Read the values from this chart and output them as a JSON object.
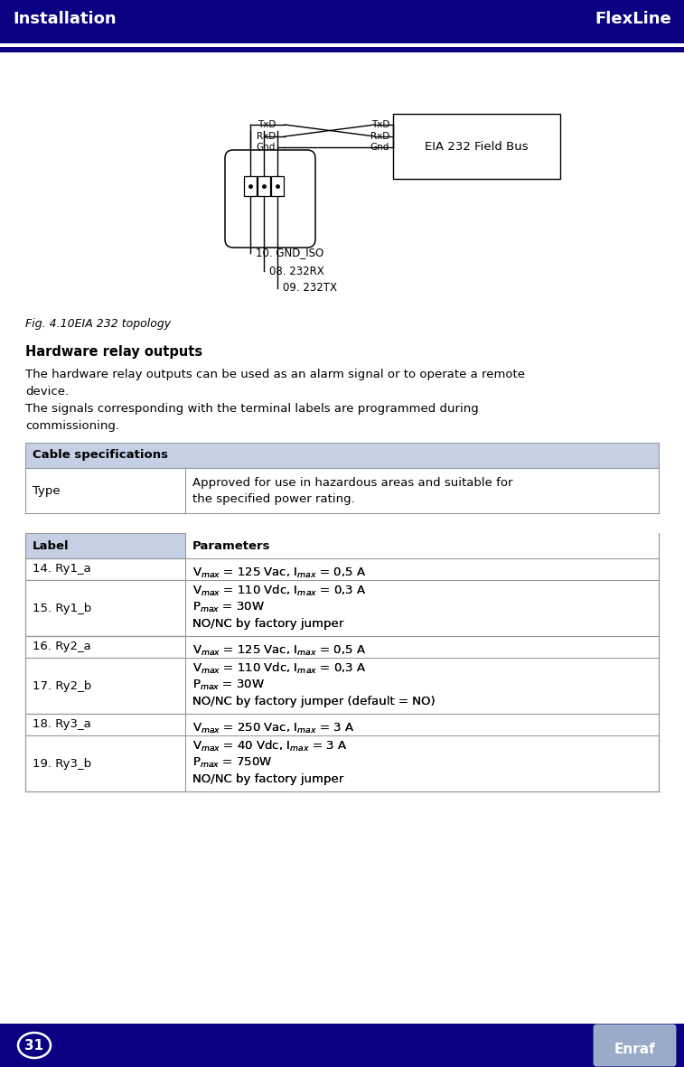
{
  "header_bg": "#0b0082",
  "header_text_color": "#ffffff",
  "header_left": "Installation",
  "header_right": "FlexLine",
  "footer_bg": "#0b0082",
  "footer_text_color": "#ffffff",
  "page_number": "31",
  "bg_color": "#ffffff",
  "fig_caption": "Fig. 4.10EIA 232 topology",
  "section_title": "Hardware relay outputs",
  "body_line1": "The hardware relay outputs can be used as an alarm signal or to operate a remote",
  "body_line2": "device.",
  "body_line3": "The signals corresponding with the terminal labels are programmed during",
  "body_line4": "commissioning.",
  "cable_spec_header": "Cable specifications",
  "cable_spec_col1": "Type",
  "cable_spec_col2a": "Approved for use in hazardous areas and suitable for",
  "cable_spec_col2b": "the specified power rating.",
  "table_header_bg": "#c5d0e4",
  "table_border": "#999999",
  "label_header": "Label",
  "param_header": "Parameters",
  "rows": [
    {
      "label": "14. Ry1_a",
      "group": 0
    },
    {
      "label": "15. Ry1_b",
      "group": 0
    },
    {
      "label": "16. Ry2_a",
      "group": 1
    },
    {
      "label": "17. Ry2_b",
      "group": 1
    },
    {
      "label": "18. Ry3_a",
      "group": 2
    },
    {
      "label": "19. Ry3_b",
      "group": 2
    }
  ],
  "param_lines": [
    [
      "V$_{max}$ = 125 Vac, I$_{max}$ = 0,5 A"
    ],
    [
      "V$_{max}$ = 110 Vdc, I$_{max}$ = 0,3 A",
      "P$_{max}$ = 30W",
      "NO/NC by factory jumper"
    ],
    [
      "V$_{max}$ = 125 Vac, I$_{max}$ = 0,5 A"
    ],
    [
      "V$_{max}$ = 110 Vdc, I$_{max}$ = 0,3 A",
      "P$_{max}$ = 30W",
      "NO/NC by factory jumper (default = NO)"
    ],
    [
      "V$_{max}$ = 250 Vac, I$_{max}$ = 3 A"
    ],
    [
      "V$_{max}$ = 40 Vdc, I$_{max}$ = 3 A",
      "P$_{max}$ = 750W",
      "NO/NC by factory jumper"
    ]
  ]
}
